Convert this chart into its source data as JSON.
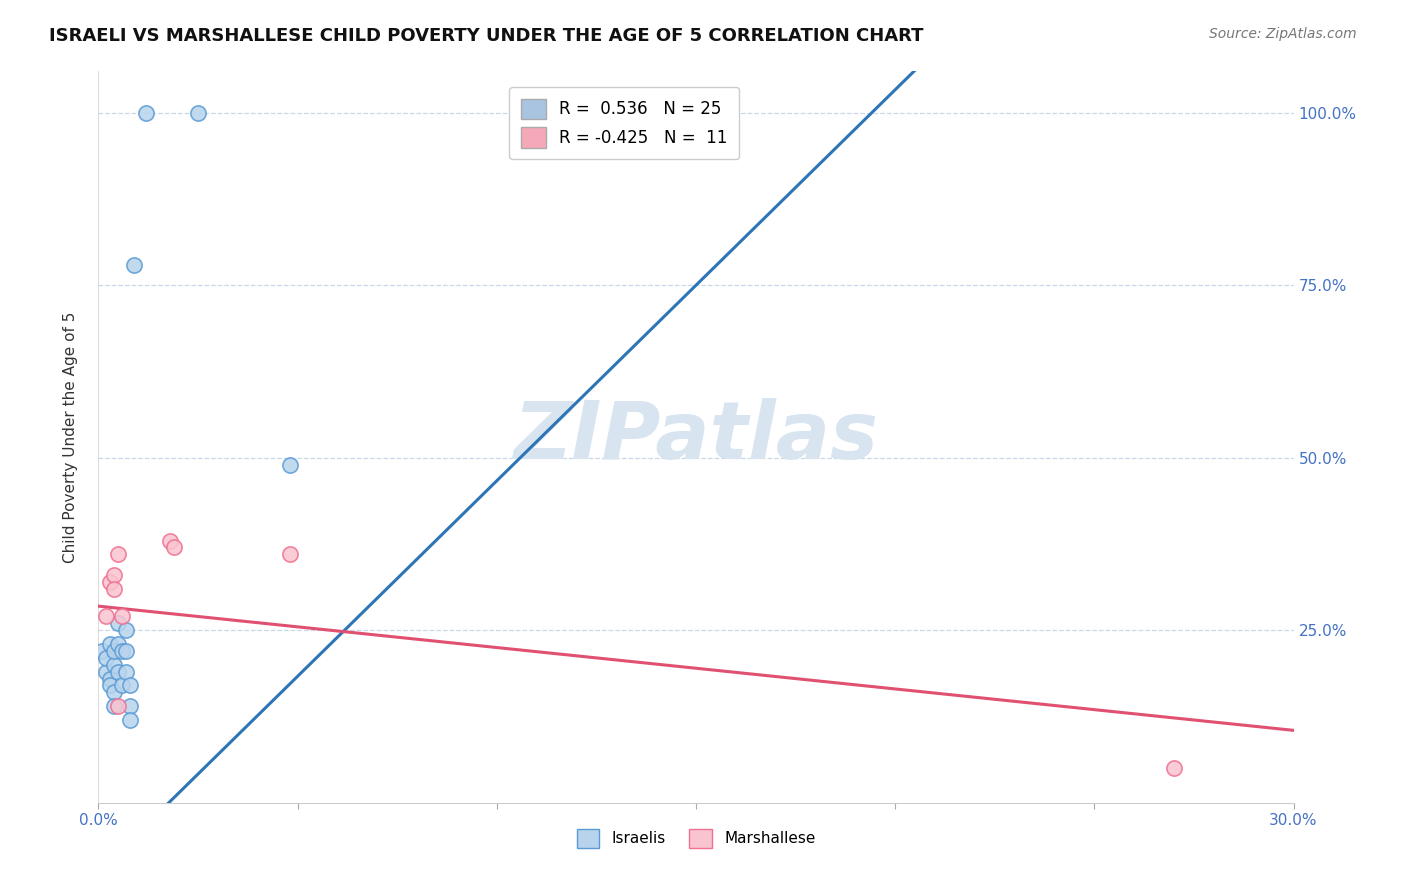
{
  "title": "ISRAELI VS MARSHALLESE CHILD POVERTY UNDER THE AGE OF 5 CORRELATION CHART",
  "source": "Source: ZipAtlas.com",
  "ylabel": "Child Poverty Under the Age of 5",
  "xlim": [
    0.0,
    0.3
  ],
  "ylim": [
    0.0,
    1.06
  ],
  "watermark": "ZIPatlas",
  "legend_items": [
    {
      "label": "R =  0.536   N = 25",
      "color": "#a8c4e0"
    },
    {
      "label": "R = -0.425   N =  11",
      "color": "#f4a8b8"
    }
  ],
  "israelis": {
    "x": [
      0.001,
      0.012,
      0.025,
      0.002,
      0.002,
      0.003,
      0.003,
      0.003,
      0.004,
      0.004,
      0.004,
      0.004,
      0.005,
      0.005,
      0.005,
      0.006,
      0.006,
      0.007,
      0.007,
      0.007,
      0.008,
      0.008,
      0.008,
      0.009,
      0.048
    ],
    "y": [
      0.22,
      1.0,
      1.0,
      0.19,
      0.21,
      0.18,
      0.23,
      0.17,
      0.2,
      0.16,
      0.22,
      0.14,
      0.23,
      0.19,
      0.26,
      0.22,
      0.17,
      0.25,
      0.22,
      0.19,
      0.17,
      0.14,
      0.12,
      0.78,
      0.49
    ],
    "facecolor": "#b8d4ec",
    "edgecolor": "#5b9bd5",
    "size": 120,
    "lw": 1.2
  },
  "marshallese": {
    "x": [
      0.002,
      0.003,
      0.004,
      0.004,
      0.005,
      0.005,
      0.006,
      0.018,
      0.019,
      0.048,
      0.27
    ],
    "y": [
      0.27,
      0.32,
      0.33,
      0.31,
      0.36,
      0.14,
      0.27,
      0.38,
      0.37,
      0.36,
      0.05
    ],
    "facecolor": "#f8c4d0",
    "edgecolor": "#f07090",
    "size": 120,
    "lw": 1.2
  },
  "blue_line": {
    "x": [
      0.0,
      0.3
    ],
    "y": [
      -0.1,
      1.6
    ],
    "color": "#2e75b6",
    "linewidth": 2.2
  },
  "pink_line": {
    "x": [
      0.0,
      0.3
    ],
    "y": [
      0.285,
      0.105
    ],
    "color": "#e05070",
    "linewidth": 2.2
  },
  "background_color": "#ffffff",
  "grid_color": "#c8d8e8",
  "title_fontsize": 13,
  "source_fontsize": 10,
  "label_fontsize": 11,
  "tick_fontsize": 11,
  "watermark_color": "#d8e4f0",
  "watermark_fontsize": 58
}
